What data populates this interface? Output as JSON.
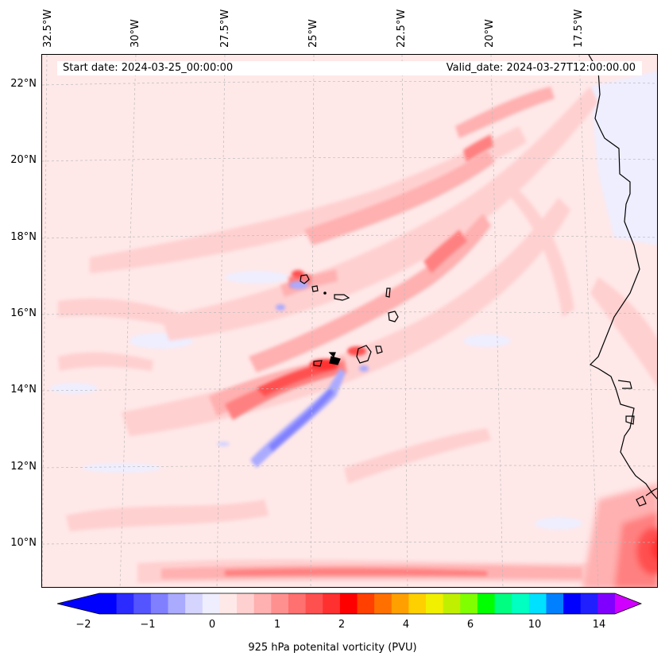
{
  "map": {
    "start_date_label": "Start date: 2024-03-25_00:00:00",
    "valid_date_label": "Valid_date: 2024-03-27T12:00:00.00",
    "longitude_labels": [
      "32.5°W",
      "30°W",
      "27.5°W",
      "25°W",
      "22.5°W",
      "20°W",
      "17.5°W"
    ],
    "latitude_labels": [
      "22°N",
      "20°N",
      "18°N",
      "16°N",
      "14°N",
      "12°N",
      "10°N"
    ],
    "region": "Cape Verde Islands and West African coast",
    "colors": {
      "background_field": "#ffe8e8",
      "coastline": "#000000",
      "gridline": "#bbbbbb"
    }
  },
  "colorbar": {
    "label": "925 hPa potenital vorticity (PVU)",
    "tick_labels": [
      "−2",
      "−1",
      "0",
      "1",
      "2",
      "4",
      "6",
      "10",
      "14"
    ],
    "levels": [
      "#0000ff",
      "#2b2bff",
      "#5555ff",
      "#8080ff",
      "#aaaaff",
      "#d4d4ff",
      "#eeeeff",
      "#ffe8e8",
      "#ffd0d0",
      "#ffb0b0",
      "#ff9090",
      "#ff7070",
      "#ff5050",
      "#ff3030",
      "#ff0000",
      "#ff4000",
      "#ff7000",
      "#ffa000",
      "#ffd000",
      "#f0f000",
      "#c0f000",
      "#80ff00",
      "#00ff00",
      "#00ff80",
      "#00ffc0",
      "#00e0ff",
      "#0080ff",
      "#0000ff",
      "#2020ff",
      "#8000ff"
    ],
    "extend_min_color": "#0000ff",
    "extend_max_color": "#d000ff"
  }
}
